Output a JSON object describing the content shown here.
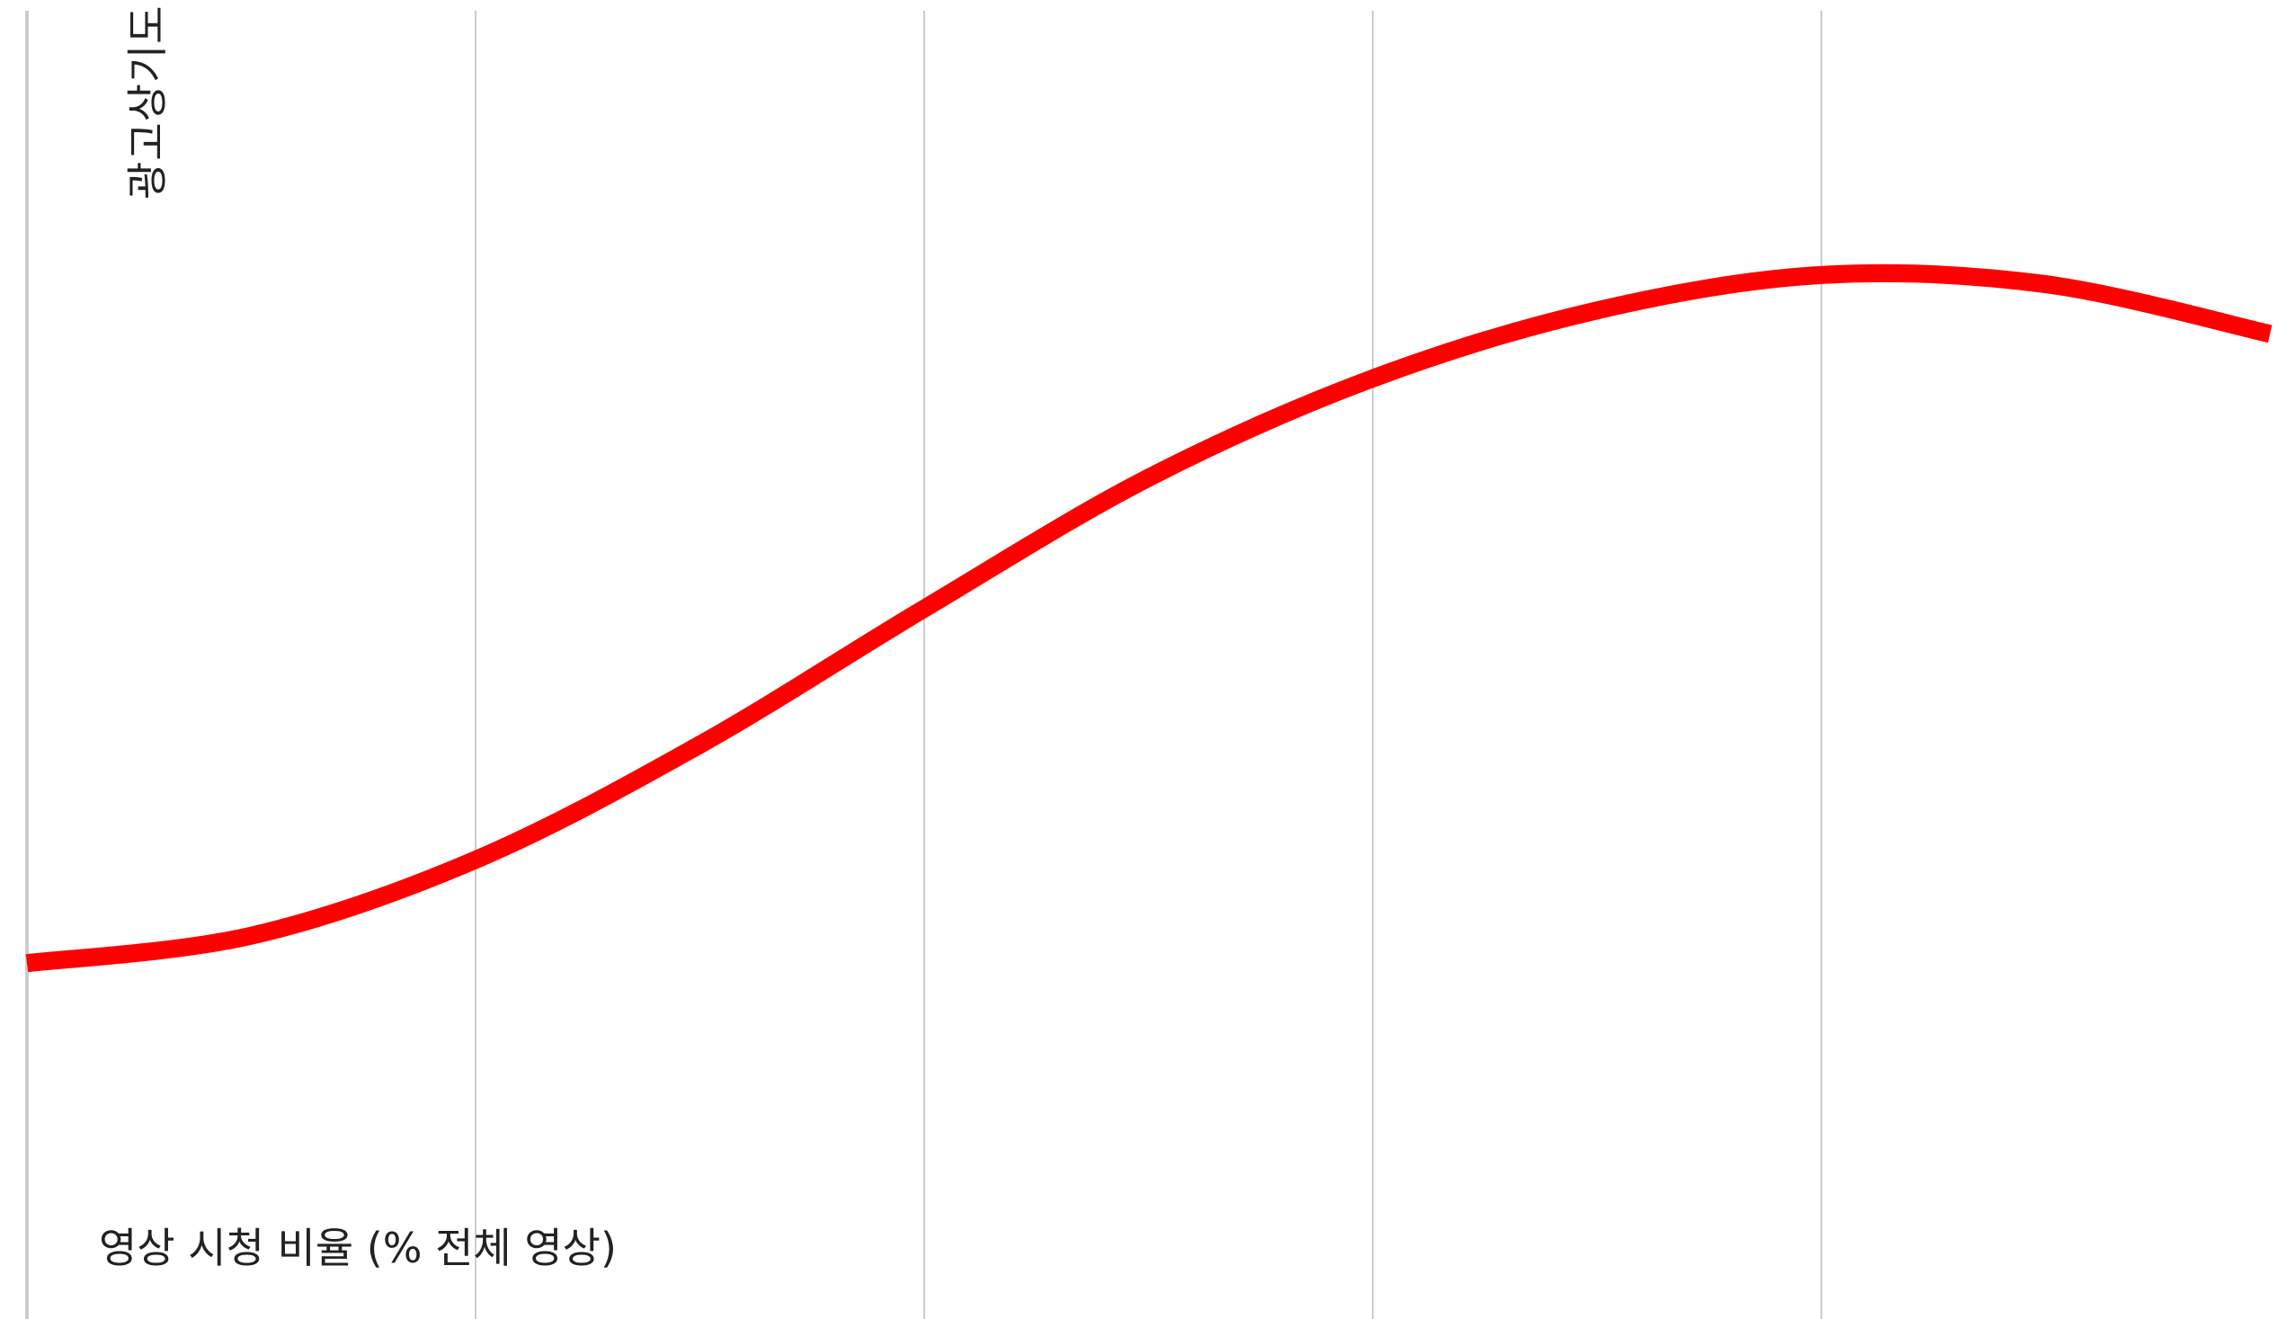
{
  "chart_data": {
    "type": "line",
    "title": "",
    "xlabel": "영상 시청 비율 (% 전체 영상)",
    "ylabel": "광고상기도",
    "xlim": [
      0,
      100
    ],
    "ylim": [
      0,
      100
    ],
    "grid": {
      "vertical": true,
      "horizontal": false
    },
    "legend": "none",
    "series": [
      {
        "color": "#ff0000",
        "x": [
          0,
          10,
          20,
          30,
          40,
          50,
          60,
          70,
          80,
          90,
          100
        ],
        "y": [
          27.2,
          29.3,
          35.1,
          43.9,
          54.3,
          64.3,
          71.9,
          77.1,
          79.8,
          79.1,
          75.3
        ]
      }
    ]
  }
}
